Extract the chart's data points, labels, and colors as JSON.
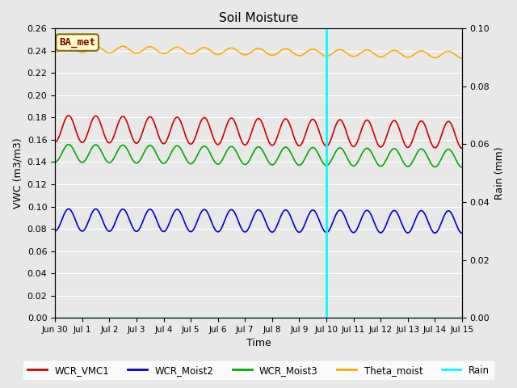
{
  "title": "Soil Moisture",
  "ylabel_left": "VWC (m3/m3)",
  "ylabel_right": "Rain (mm)",
  "xlabel": "Time",
  "plot_bg_color": "#e8e8e8",
  "annotation_label": "BA_met",
  "annotation_box_color": "#ffffcc",
  "annotation_box_edge": "#8b6914",
  "vline_color": "cyan",
  "vline_x_day": 10,
  "ylim_left": [
    0.0,
    0.26
  ],
  "ylim_right": [
    0.0,
    0.1
  ],
  "series": {
    "WCR_VMC1": {
      "color": "#cc0000",
      "base": 0.17,
      "amplitude": 0.012,
      "trend": -0.006,
      "freq": 1.0
    },
    "WCR_Moist2": {
      "color": "#0000cc",
      "base": 0.088,
      "amplitude": 0.01,
      "trend": -0.002,
      "freq": 1.0
    },
    "WCR_Moist3": {
      "color": "#00aa00",
      "base": 0.148,
      "amplitude": 0.008,
      "trend": -0.005,
      "freq": 1.0
    },
    "Theta_moist": {
      "color": "#ffaa00",
      "base": 0.242,
      "amplitude": 0.003,
      "trend": -0.006,
      "freq": 1.0
    },
    "Rain": {
      "color": "cyan",
      "base": 0.0,
      "amplitude": 0.0,
      "trend": 0.0,
      "freq": 1.0
    }
  },
  "xtick_labels": [
    "Jun 30",
    "Jul 1",
    "Jul 2",
    "Jul 3",
    "Jul 4",
    "Jul 5",
    "Jul 6",
    "Jul 7",
    "Jul 8",
    "Jul 9",
    "Jul 10",
    "Jul 11",
    "Jul 12",
    "Jul 13",
    "Jul 14",
    "Jul 15"
  ],
  "yticks_left": [
    0.0,
    0.02,
    0.04,
    0.06,
    0.08,
    0.1,
    0.12,
    0.14,
    0.16,
    0.18,
    0.2,
    0.22,
    0.24,
    0.26
  ],
  "yticks_right": [
    0.0,
    0.02,
    0.04,
    0.06,
    0.08,
    0.1
  ],
  "legend_entries": [
    "WCR_VMC1",
    "WCR_Moist2",
    "WCR_Moist3",
    "Theta_moist",
    "Rain"
  ],
  "legend_colors": [
    "#cc0000",
    "#0000cc",
    "#00aa00",
    "#ffaa00",
    "cyan"
  ]
}
